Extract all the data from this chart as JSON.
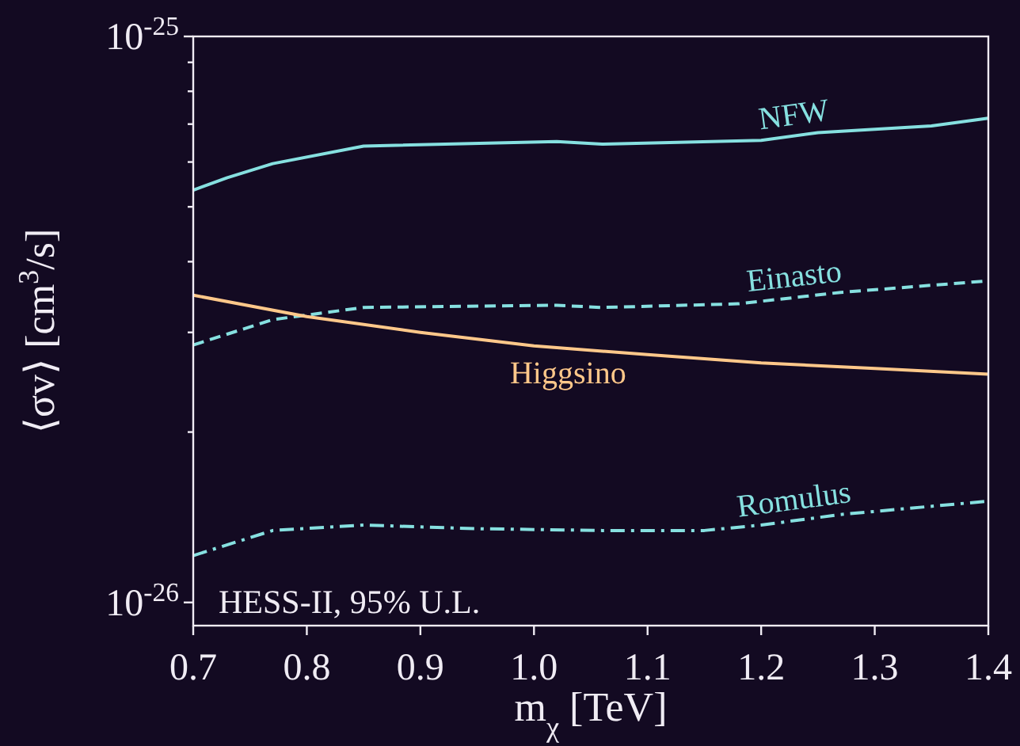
{
  "chart_data": {
    "type": "line",
    "xlabel": "m$_{χ}$ [TeV]",
    "ylabel": "⟨σv⟩ [cm$^{3}$/s]",
    "log": "y",
    "xlim": [
      0.7,
      1.4
    ],
    "xticks": [
      {
        "value": 0.7,
        "label": "0.7"
      },
      {
        "value": 0.8,
        "label": "0.8"
      },
      {
        "value": 0.9,
        "label": "0.9"
      },
      {
        "value": 1.0,
        "label": "1.0"
      },
      {
        "value": 1.1,
        "label": "1.1"
      },
      {
        "value": 1.2,
        "label": "1.2"
      },
      {
        "value": 1.3,
        "label": "1.3"
      },
      {
        "value": 1.4,
        "label": "1.4"
      }
    ],
    "ylim": [
      9.1e-27,
      1e-25
    ],
    "yticks": [
      {
        "value": 1e-26,
        "label": "10$^{-26}$"
      },
      {
        "value": 2e-26,
        "label": null
      },
      {
        "value": 3e-26,
        "label": null
      },
      {
        "value": 4e-26,
        "label": null
      },
      {
        "value": 5e-26,
        "label": null
      },
      {
        "value": 6e-26,
        "label": null
      },
      {
        "value": 7e-26,
        "label": null
      },
      {
        "value": 8e-26,
        "label": null
      },
      {
        "value": 9e-26,
        "label": null
      },
      {
        "value": 1e-25,
        "label": "10$^{-25}$"
      }
    ],
    "grid": false,
    "marker": "none",
    "series": [
      {
        "name": "NFW",
        "color": "#86e0e0",
        "line_style": "solid",
        "x": [
          0.7,
          0.73,
          0.77,
          0.85,
          1.02,
          1.06,
          1.2,
          1.25,
          1.35,
          1.4
        ],
        "values": [
          5.35e-26,
          5.63e-26,
          5.96e-26,
          6.4e-26,
          6.52e-26,
          6.45e-26,
          6.55e-26,
          6.76e-26,
          6.95e-26,
          7.17e-26
        ]
      },
      {
        "name": "Einasto",
        "color": "#86e0e0",
        "line_style": "dashed",
        "x": [
          0.7,
          0.77,
          0.85,
          1.02,
          1.06,
          1.18,
          1.27,
          1.4
        ],
        "values": [
          2.85e-26,
          3.16e-26,
          3.32e-26,
          3.35e-26,
          3.32e-26,
          3.37e-26,
          3.53e-26,
          3.7e-26
        ]
      },
      {
        "name": "Higgsino",
        "color": "#ffc88a",
        "line_style": "solid",
        "x": [
          0.7,
          0.8,
          0.9,
          1.0,
          1.1,
          1.2,
          1.3,
          1.4
        ],
        "values": [
          3.49e-26,
          3.2e-26,
          3e-26,
          2.84e-26,
          2.74e-26,
          2.65e-26,
          2.59e-26,
          2.53e-26
        ]
      },
      {
        "name": "Romulus",
        "color": "#86e0e0",
        "line_style": "dashdot",
        "x": [
          0.7,
          0.77,
          0.85,
          0.95,
          1.06,
          1.15,
          1.2,
          1.27,
          1.4
        ],
        "values": [
          1.21e-26,
          1.34e-26,
          1.37e-26,
          1.35e-26,
          1.34e-26,
          1.34e-26,
          1.37e-26,
          1.43e-26,
          1.51e-26
        ]
      }
    ],
    "annotations": [
      "HESS-II, 95% U.L."
    ]
  }
}
